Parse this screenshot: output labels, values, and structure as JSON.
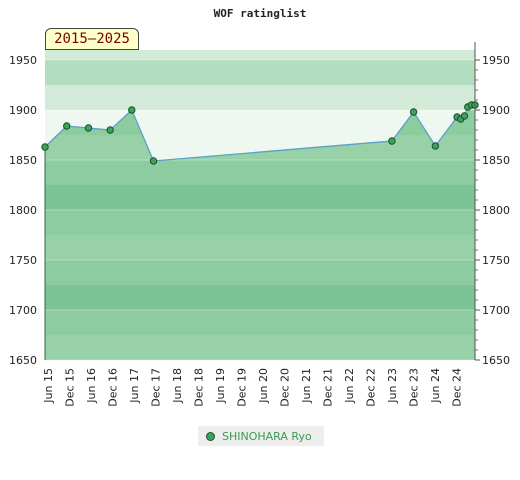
{
  "chart_data": {
    "type": "area",
    "title": "WOF ratinglist",
    "period_label": "2015–2025",
    "x_labels": [
      "Jun 15",
      "Dec 15",
      "Jun 16",
      "Dec 16",
      "Jun 17",
      "Dec 17",
      "Jun 18",
      "Dec 18",
      "Jun 19",
      "Dec 19",
      "Jun 20",
      "Dec 20",
      "Jun 21",
      "Dec 21",
      "Jun 22",
      "Dec 22",
      "Jun 23",
      "Dec 23",
      "Jun 24",
      "Dec 24"
    ],
    "y_ticks": [
      1650,
      1700,
      1750,
      1800,
      1850,
      1900,
      1950
    ],
    "ylim": [
      1650,
      1960
    ],
    "grid": true,
    "legend_position": "bottom",
    "series": [
      {
        "name": "SHINOHARA Ryo",
        "points": [
          {
            "x": "2015-06",
            "y": 1863
          },
          {
            "x": "2015-12",
            "y": 1884
          },
          {
            "x": "2016-06",
            "y": 1882
          },
          {
            "x": "2016-12",
            "y": 1880
          },
          {
            "x": "2017-06",
            "y": 1900
          },
          {
            "x": "2017-12",
            "y": 1849
          },
          {
            "x": "2023-06",
            "y": 1869
          },
          {
            "x": "2023-12",
            "y": 1898
          },
          {
            "x": "2024-06",
            "y": 1864
          },
          {
            "x": "2024-12",
            "y": 1893
          },
          {
            "x": "2025-01",
            "y": 1891
          },
          {
            "x": "2025-02",
            "y": 1894
          },
          {
            "x": "2025-03",
            "y": 1903
          },
          {
            "x": "2025-04",
            "y": 1905
          },
          {
            "x": "2025-05",
            "y": 1905
          }
        ]
      }
    ]
  },
  "colors": {
    "band_a": "#98d0a8",
    "band_b": "#8ccc9e",
    "band_c": "#7dc495",
    "top_band_a": "#b3ddbf",
    "top_band_b": "#d2ebd8",
    "above_line": "#eef8f0",
    "line": "#5aa0c8",
    "marker_fill": "#3aa55a",
    "marker_stroke": "#1d4d2a"
  }
}
